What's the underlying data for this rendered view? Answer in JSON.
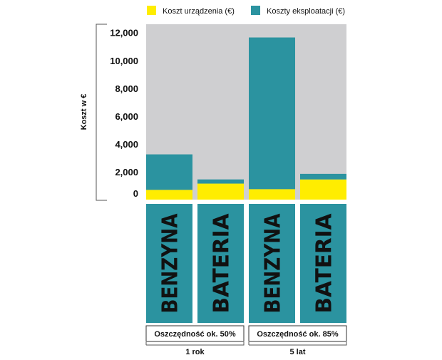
{
  "legend": {
    "items": [
      {
        "label": "Koszt urządzenia (€)",
        "color": "#FFED00"
      },
      {
        "label": "Koszty eksploatacji (€)",
        "color": "#2B93A0"
      }
    ]
  },
  "chart_data": {
    "type": "bar",
    "stacked": true,
    "categories": [
      "BENZYNA",
      "BATERIA",
      "BENZYNA",
      "BATERIA"
    ],
    "series": [
      {
        "name": "Koszt urządzenia (€)",
        "color": "#FFED00",
        "values": [
          700,
          1150,
          750,
          1450
        ]
      },
      {
        "name": "Koszty eksploatacji (€)",
        "color": "#2B93A0",
        "values": [
          2550,
          300,
          10900,
          400
        ]
      }
    ],
    "ylabel": "Koszt w €",
    "ylim": [
      0,
      12600
    ],
    "yticks": [
      0,
      2000,
      4000,
      6000,
      8000,
      10000,
      12000
    ],
    "ytick_labels": [
      "0",
      "2,000",
      "4,000",
      "6,000",
      "8,000",
      "10,000",
      "12,000"
    ],
    "plot_background": "#CFCFD1",
    "groups": [
      {
        "period": "1 rok",
        "saving": "Oszczędność ok. 50%"
      },
      {
        "period": "5 lat",
        "saving": "Oszczędność ok. 85%"
      }
    ],
    "grid": false
  }
}
